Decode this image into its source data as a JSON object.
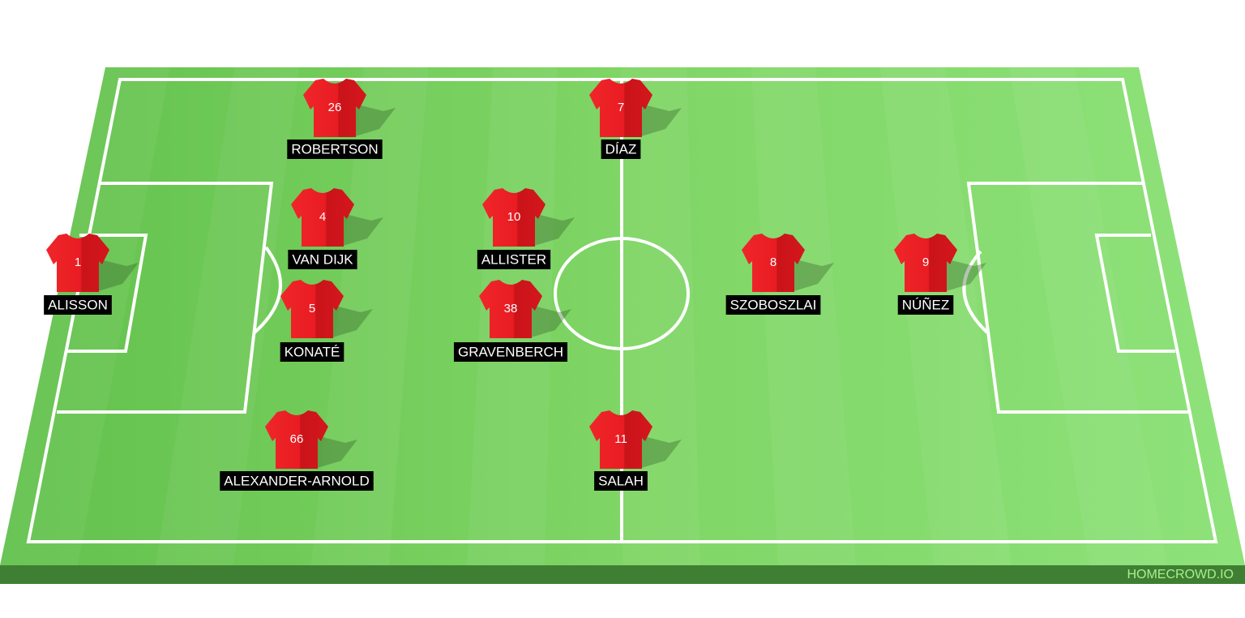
{
  "players": [
    {
      "number": "1",
      "name": "ALISSON"
    },
    {
      "number": "26",
      "name": "ROBERTSON"
    },
    {
      "number": "4",
      "name": "VAN DIJK"
    },
    {
      "number": "5",
      "name": "KONATÉ"
    },
    {
      "number": "66",
      "name": "ALEXANDER-ARNOLD"
    },
    {
      "number": "10",
      "name": "ALLISTER"
    },
    {
      "number": "38",
      "name": "GRAVENBERCH"
    },
    {
      "number": "7",
      "name": "DÍAZ"
    },
    {
      "number": "11",
      "name": "SALAH"
    },
    {
      "number": "8",
      "name": "SZOBOSZLAI"
    },
    {
      "number": "9",
      "name": "NÚÑEZ"
    }
  ],
  "watermark": "HOMECROWD.IO"
}
